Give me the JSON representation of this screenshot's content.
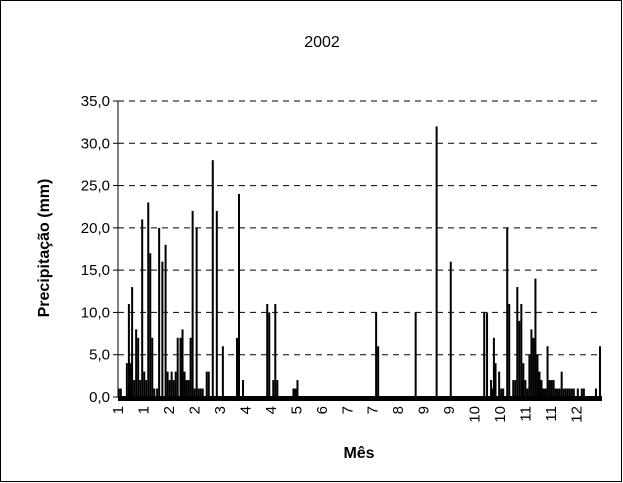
{
  "chart_data": {
    "type": "bar",
    "title": "2002",
    "xlabel": "Mês",
    "ylabel": "Precipitação (mm)",
    "ylim": [
      0,
      35
    ],
    "xlim": [
      1,
      13
    ],
    "grid": "horizontal dashed",
    "y_ticks": [
      "0,0",
      "5,0",
      "10,0",
      "15,0",
      "20,0",
      "25,0",
      "30,0",
      "35,0"
    ],
    "x_ticks": [
      "1",
      "1",
      "2",
      "2",
      "3",
      "4",
      "4",
      "5",
      "6",
      "7",
      "7",
      "8",
      "9",
      "9",
      "10",
      "10",
      "11",
      "11",
      "12"
    ],
    "bar_color": "#000000",
    "series": [
      {
        "x": [
          1.02,
          1.07,
          1.22,
          1.27,
          1.31,
          1.35,
          1.4,
          1.45,
          1.5,
          1.55,
          1.6,
          1.65,
          1.7,
          1.75,
          1.8,
          1.85,
          1.9,
          1.97,
          2.02,
          2.1,
          2.18,
          2.23,
          2.28,
          2.33,
          2.38,
          2.43,
          2.48,
          2.55,
          2.6,
          2.65,
          2.7,
          2.75,
          2.8,
          2.85,
          2.9,
          2.95,
          3.0,
          3.05,
          3.1,
          3.2,
          3.25,
          3.35,
          3.45,
          3.6,
          3.95,
          4.0,
          4.1,
          4.7,
          4.75,
          4.85,
          4.9,
          4.95,
          5.35,
          5.4,
          5.45,
          7.4,
          7.45,
          8.38,
          8.9,
          9.25,
          10.08,
          10.15,
          10.25,
          10.28,
          10.32,
          10.36,
          10.45,
          10.5,
          10.55,
          10.65,
          10.7,
          10.8,
          10.85,
          10.9,
          10.95,
          11.0,
          11.02,
          11.05,
          11.1,
          11.15,
          11.2,
          11.25,
          11.3,
          11.35,
          11.4,
          11.45,
          11.5,
          11.55,
          11.6,
          11.65,
          11.7,
          11.75,
          11.8,
          11.85,
          11.9,
          11.95,
          12.0,
          12.05,
          12.1,
          12.15,
          12.2,
          12.25,
          12.3,
          12.4,
          12.5,
          12.55,
          12.85,
          12.95
        ],
        "values": [
          1,
          1,
          4,
          11,
          4,
          13,
          2,
          8,
          7,
          2,
          21,
          3,
          2,
          23,
          17,
          7,
          1,
          1,
          20,
          16,
          18,
          3,
          2,
          3,
          2,
          3,
          7,
          7,
          8,
          3,
          2,
          2,
          7,
          22,
          1,
          20,
          1,
          1,
          1,
          3,
          3,
          28,
          22,
          6,
          7,
          24,
          2,
          11,
          10,
          2,
          11,
          2,
          1,
          1,
          2,
          10,
          6,
          10,
          32,
          16,
          10,
          10,
          2,
          1,
          7,
          4,
          3,
          1,
          1,
          20,
          11,
          2,
          2,
          13,
          9,
          11,
          2,
          4,
          2,
          1,
          5,
          8,
          7,
          14,
          5,
          3,
          2,
          1,
          1,
          6,
          2,
          2,
          2,
          1,
          1,
          1,
          3,
          1,
          1,
          1,
          1,
          1,
          1,
          1,
          1,
          1,
          1,
          6
        ]
      }
    ]
  }
}
